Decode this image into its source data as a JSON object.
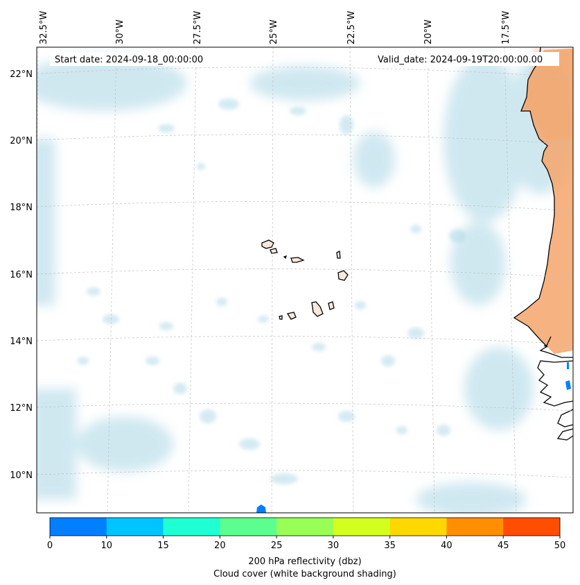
{
  "map": {
    "start_date": "Start date: 2024-09-18_00:00:00",
    "valid_date": "Valid_date: 2024-09-19T20:00:00.00",
    "lon_labels": [
      "32.5°W",
      "30°W",
      "27.5°W",
      "25°W",
      "22.5°W",
      "20°W",
      "17.5°W"
    ],
    "lat_labels": [
      "22°N",
      "20°N",
      "18°N",
      "16°N",
      "14°N",
      "12°N",
      "10°N"
    ],
    "land_color": "#f4a46a",
    "cloud_color": "#a9d6e5"
  },
  "colorbar": {
    "bounds": [
      "0",
      "10",
      "15",
      "20",
      "25",
      "30",
      "35",
      "40",
      "45",
      "50"
    ],
    "colors": [
      "#0080ff",
      "#00c4ff",
      "#1effd4",
      "#5cff8e",
      "#98ff56",
      "#d4ff1e",
      "#ffd800",
      "#ff8e00",
      "#ff4e00"
    ],
    "label1": "200 hPa reflectivity (dbz)",
    "label2": "Cloud cover (white background shading)"
  }
}
